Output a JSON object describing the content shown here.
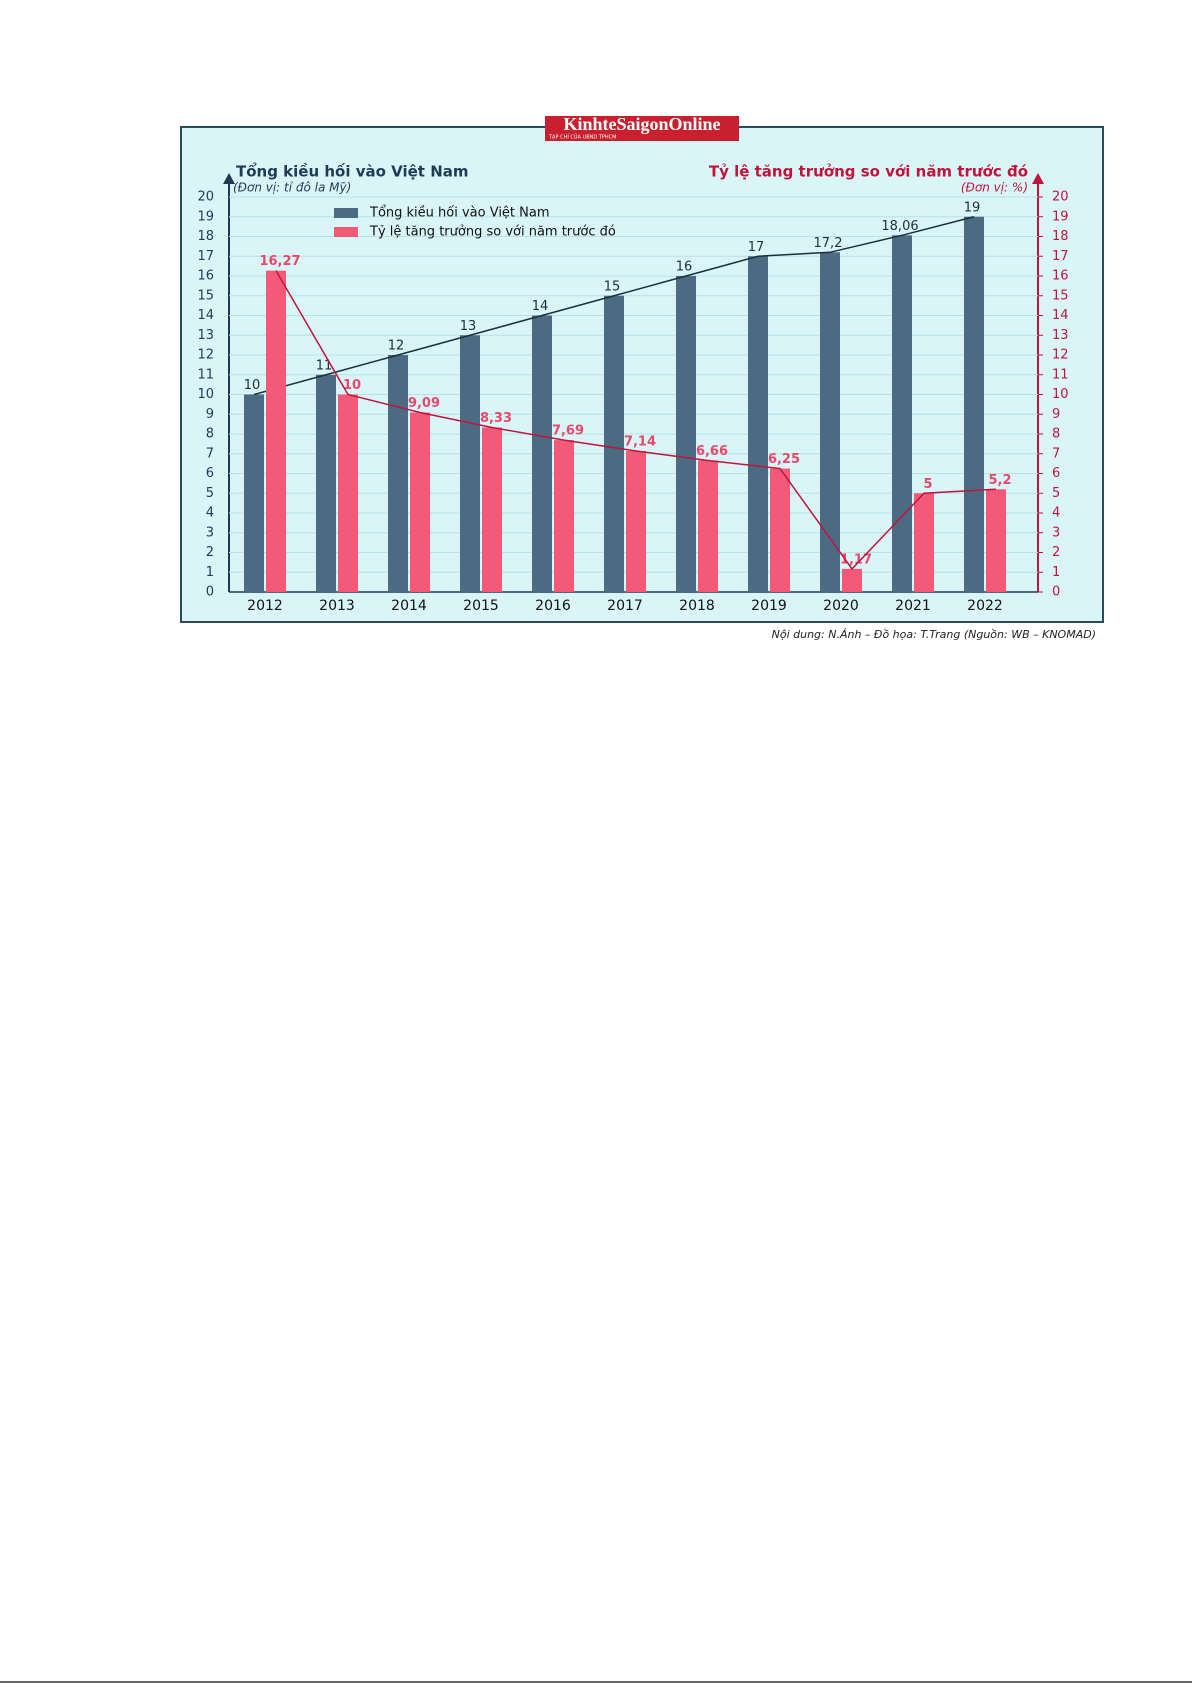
{
  "chart_data": {
    "type": "bar",
    "logo": "KinhteSaigonOnline",
    "logo_tagline": "TẠP CHÍ CỦA UBND TPHCM",
    "y_title": "Tổng kiều hối vào Việt Nam",
    "y_subtitle": "(Đơn vị: tỉ đô la Mỹ)",
    "y2_title": "Tỷ lệ tăng trưởng so với năm trước đó",
    "y2_subtitle": "(Đơn vị: %)",
    "caption": "Nội dung: N.Ánh – Đồ họa: T.Trang (Nguồn: WB – KNOMAD)",
    "categories": [
      "2012",
      "2013",
      "2014",
      "2015",
      "2016",
      "2017",
      "2018",
      "2019",
      "2020",
      "2021",
      "2022"
    ],
    "series": [
      {
        "name": "Tổng kiều hối vào Việt Nam",
        "color": "#4a6b82",
        "line_color": "#1d2e3d",
        "values": [
          10,
          11,
          12,
          13,
          14,
          15,
          16,
          17,
          17.2,
          18.06,
          19
        ],
        "value_labels": [
          "10",
          "11",
          "12",
          "13",
          "14",
          "15",
          "16",
          "17",
          "17,2",
          "18,06",
          "19"
        ]
      },
      {
        "name": "Tỷ lệ tăng trưởng so với năm trước đó",
        "color": "#f25a78",
        "line_color": "#c0143c",
        "axis": "y2",
        "values": [
          16.27,
          10,
          9.09,
          8.33,
          7.69,
          7.14,
          6.66,
          6.25,
          1.17,
          5,
          5.2
        ],
        "value_labels": [
          "16,27",
          "10",
          "9,09",
          "8,33",
          "7,69",
          "7,14",
          "6,66",
          "6,25",
          "1,17",
          "5",
          "5,2"
        ]
      }
    ],
    "line_overlay": true,
    "ylim": [
      0,
      20
    ],
    "yticks": [
      0,
      1,
      2,
      3,
      4,
      5,
      6,
      7,
      8,
      9,
      10,
      11,
      12,
      13,
      14,
      15,
      16,
      17,
      18,
      19,
      20
    ],
    "y2lim": [
      0,
      20
    ],
    "y2ticks": [
      0,
      1,
      2,
      3,
      4,
      5,
      6,
      7,
      8,
      9,
      10,
      11,
      12,
      13,
      14,
      15,
      16,
      17,
      18,
      19,
      20
    ],
    "grid": true
  }
}
